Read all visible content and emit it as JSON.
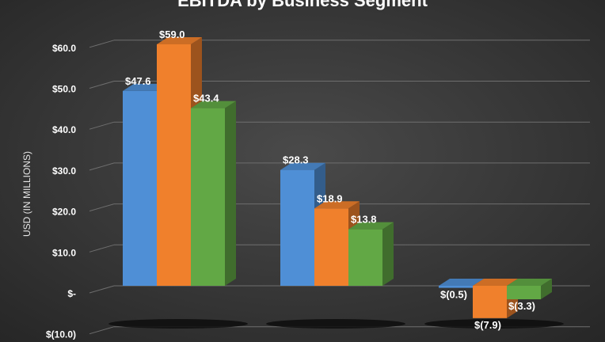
{
  "chart_data": {
    "type": "bar",
    "title": "EBITDA by Business Segment",
    "ylabel": "USD (IN MILLIONS)",
    "ylim": [
      -10,
      60
    ],
    "yticks": [
      {
        "value": 60,
        "label": "$60.0"
      },
      {
        "value": 50,
        "label": "$50.0"
      },
      {
        "value": 40,
        "label": "$40.0"
      },
      {
        "value": 30,
        "label": "$30.0"
      },
      {
        "value": 20,
        "label": "$20.0"
      },
      {
        "value": 10,
        "label": "$10.0"
      },
      {
        "value": 0,
        "label": "$-"
      },
      {
        "value": -10,
        "label": "$(10.0)"
      }
    ],
    "categories": [
      "",
      "",
      ""
    ],
    "series": [
      {
        "color": "#4f8fd6",
        "values": [
          47.6,
          28.3,
          -0.5
        ],
        "labels": [
          "$47.6",
          "$28.3",
          "$(0.5)"
        ]
      },
      {
        "color": "#f0802c",
        "values": [
          59.0,
          18.9,
          -7.9
        ],
        "labels": [
          "$59.0",
          "$18.9",
          "$(7.9)"
        ]
      },
      {
        "color": "#62a845",
        "values": [
          43.4,
          13.8,
          -3.3
        ],
        "labels": [
          "$43.4",
          "$13.8",
          "$(3.3)"
        ]
      }
    ],
    "grid": true,
    "legend": "none",
    "background": "#3a3a3a"
  }
}
